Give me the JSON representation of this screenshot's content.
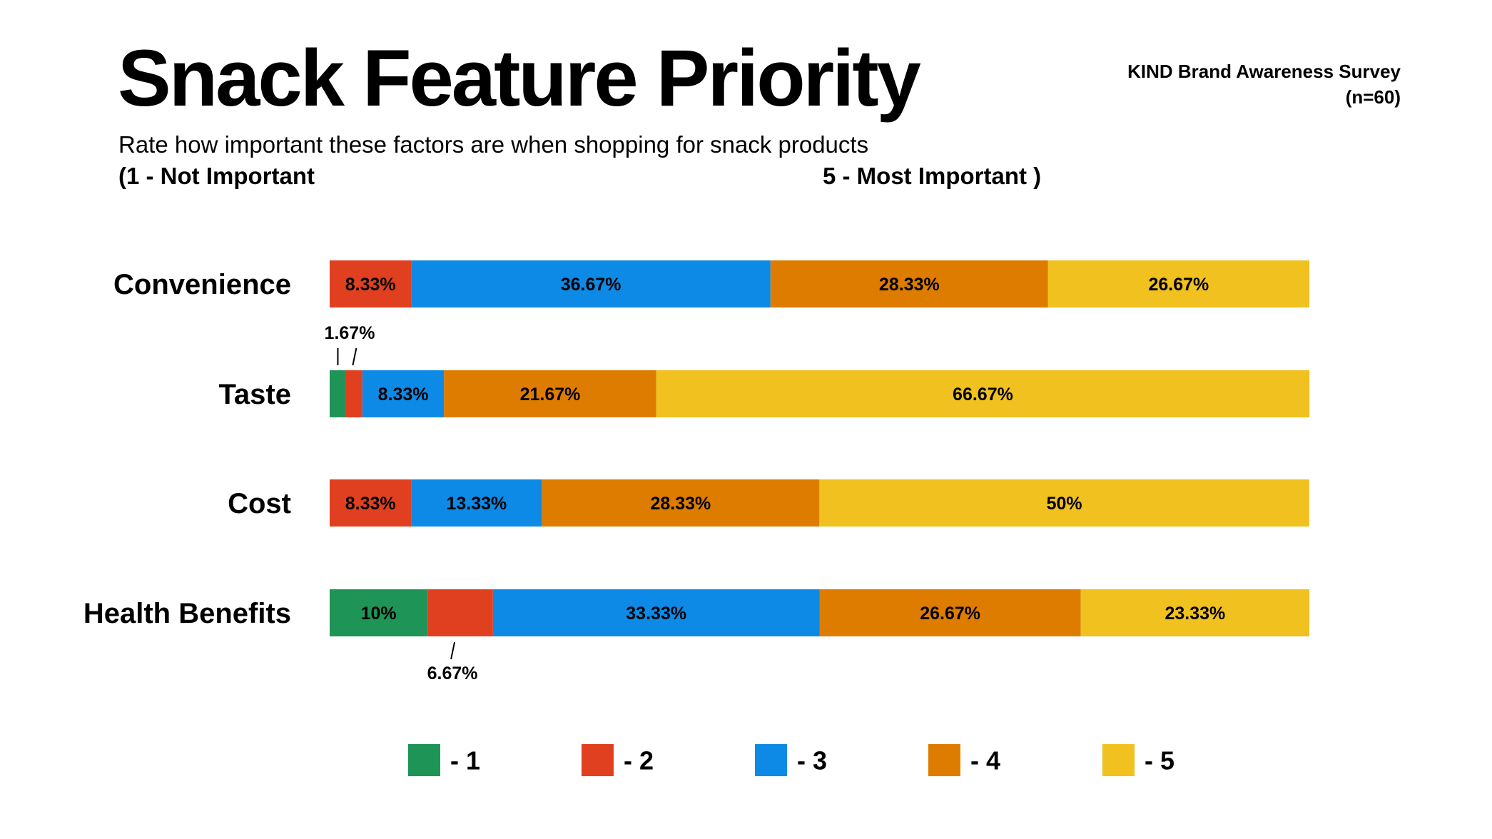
{
  "header": {
    "title": "Snack Feature Priority",
    "source": "KIND Brand Awareness Survey (n=60)",
    "subtitle": "Rate how important these factors are when shopping for snack products",
    "scale_low": "(1 - Not Important",
    "scale_high": "5 - Most Important )"
  },
  "chart_data": {
    "type": "bar",
    "orientation": "horizontal",
    "stacked": true,
    "categories": [
      "Convenience",
      "Taste",
      "Cost",
      "Health Benefits"
    ],
    "series": [
      {
        "name": "1",
        "color": "#1E9457",
        "values": [
          0,
          1.67,
          0,
          10
        ]
      },
      {
        "name": "2",
        "color": "#E0401F",
        "values": [
          8.33,
          1.67,
          8.33,
          6.67
        ]
      },
      {
        "name": "3",
        "color": "#0D8AE6",
        "values": [
          36.67,
          8.33,
          13.33,
          33.33
        ]
      },
      {
        "name": "4",
        "color": "#DE7C00",
        "values": [
          28.33,
          21.67,
          28.33,
          26.67
        ]
      },
      {
        "name": "5",
        "color": "#F0C11F",
        "values": [
          26.67,
          66.67,
          50,
          23.33
        ]
      }
    ],
    "segment_labels": [
      [
        "",
        "8.33%",
        "36.67%",
        "28.33%",
        "26.67%"
      ],
      [
        "",
        "",
        "8.33%",
        "21.67%",
        "66.67%"
      ],
      [
        "",
        "8.33%",
        "13.33%",
        "28.33%",
        "50%"
      ],
      [
        "10%",
        "",
        "33.33%",
        "26.67%",
        "23.33%"
      ]
    ],
    "callouts": [
      {
        "category": "Taste",
        "text": "1.67%"
      },
      {
        "category": "Health Benefits",
        "text": "6.67%"
      }
    ],
    "legend": {
      "position": "bottom",
      "prefix": "- "
    },
    "xlim": [
      0,
      100
    ],
    "grid": false
  }
}
